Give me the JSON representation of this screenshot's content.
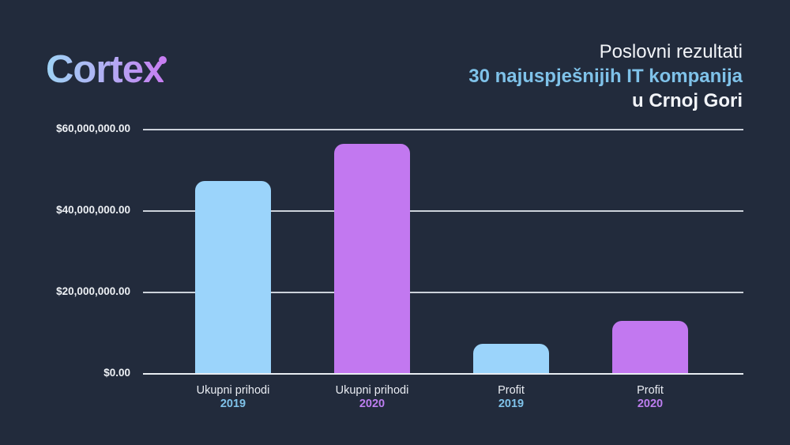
{
  "background_color": "#222b3c",
  "logo": {
    "text": "Cortex",
    "gradient_start": "#9ed3f5",
    "gradient_end": "#c77ef2",
    "dot_color": "#c77ef2"
  },
  "title": {
    "line1": "Poslovni rezultati",
    "line2": "30 najuspješnijih IT kompanija",
    "line3": "u Crnoj Gori",
    "line1_color": "#f2f4f8",
    "line2_color": "#7fc2e9",
    "line3_color": "#f2f4f8"
  },
  "chart_data": {
    "type": "bar",
    "title": "Poslovni rezultati 30 najuspješnijih IT kompanija u Crnoj Gori",
    "categories": [
      "Ukupni prihodi",
      "Ukupni prihodi",
      "Profit",
      "Profit"
    ],
    "category_years": [
      "2019",
      "2020",
      "2019",
      "2020"
    ],
    "values": [
      47400000,
      56600000,
      7400000,
      13000000
    ],
    "bar_colors": [
      "#9bd4fb",
      "#c278f0",
      "#9bd4fb",
      "#c278f0"
    ],
    "year_label_colors": [
      "#7fc2e9",
      "#bd7ef0",
      "#7fc2e9",
      "#bd7ef0"
    ],
    "y_ticks": [
      "$60,000,000.00",
      "$40,000,000.00",
      "$20,000,000.00",
      "$0.00"
    ],
    "y_tick_values": [
      60000000,
      40000000,
      20000000,
      0
    ],
    "ylim": [
      0,
      60000000
    ],
    "xlabel": "",
    "ylabel": "",
    "grid": true,
    "legend": "none",
    "gridline_color": "#ccd2da",
    "baseline_color": "#e8ecf1",
    "y_label_color": "#eef1f5"
  }
}
